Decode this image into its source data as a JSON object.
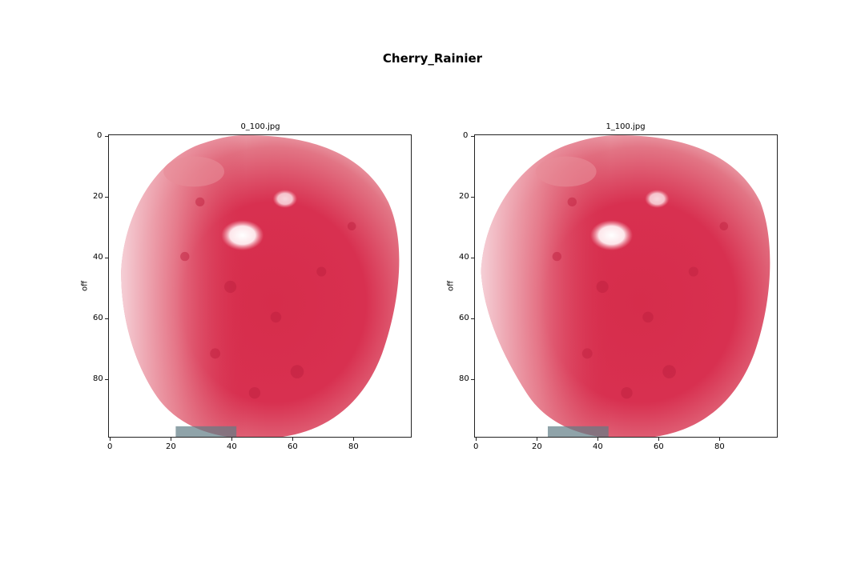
{
  "figure": {
    "title": "Cherry_Rainier"
  },
  "panels": [
    {
      "title": "0_100.jpg",
      "ylabel": "off",
      "xticks": [
        "0",
        "20",
        "40",
        "60",
        "80"
      ],
      "yticks": [
        "0",
        "20",
        "40",
        "60",
        "80"
      ],
      "image": {
        "subject": "red Rainier cherry on white background",
        "colors": {
          "background": "#ffffff",
          "fruit_main": "#d62d4b",
          "fruit_dark": "#bf2140",
          "fruit_light": "#e88c98",
          "highlight": "#ffffff",
          "stem_shadow": "#5f7c85"
        }
      }
    },
    {
      "title": "1_100.jpg",
      "ylabel": "off",
      "xticks": [
        "0",
        "20",
        "40",
        "60",
        "80"
      ],
      "yticks": [
        "0",
        "20",
        "40",
        "60",
        "80"
      ],
      "image": {
        "subject": "red Rainier cherry on white background",
        "colors": {
          "background": "#ffffff",
          "fruit_main": "#d62d4b",
          "fruit_dark": "#bf2140",
          "fruit_light": "#e88c98",
          "highlight": "#ffffff",
          "stem_shadow": "#5f7c85"
        }
      }
    }
  ]
}
